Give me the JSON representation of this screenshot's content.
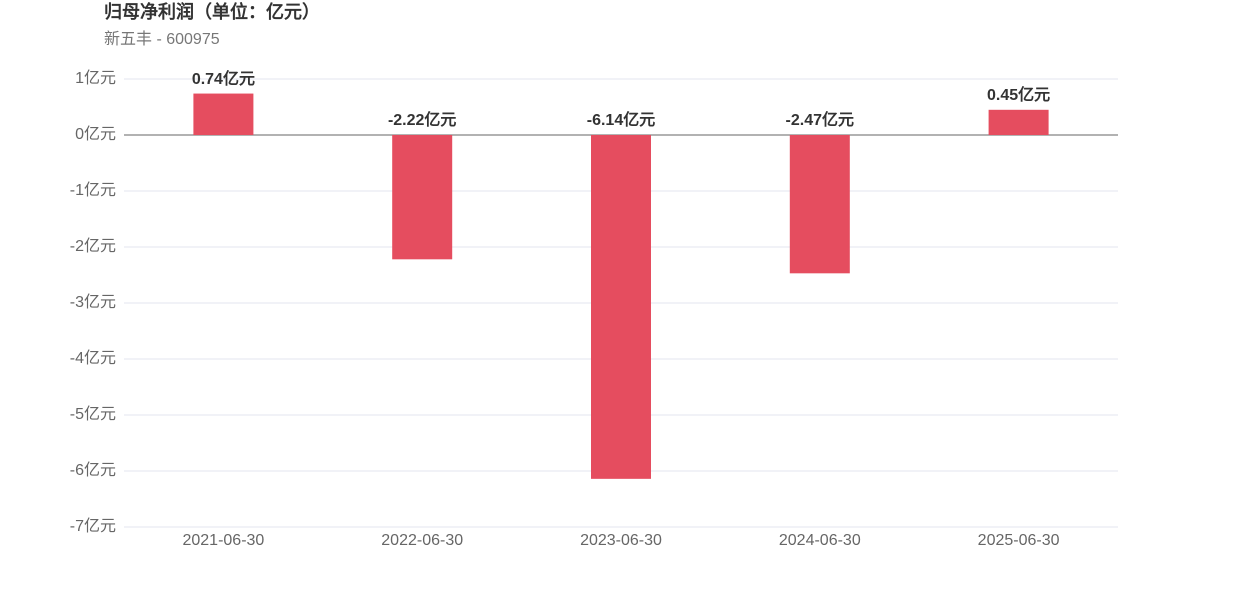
{
  "chart_data": {
    "type": "bar",
    "title": "归母净利润（单位：亿元）",
    "subtitle": "新五丰 - 600975",
    "categories": [
      "2021-06-30",
      "2022-06-30",
      "2023-06-30",
      "2024-06-30",
      "2025-06-30"
    ],
    "values": [
      0.74,
      -2.22,
      -6.14,
      -2.47,
      0.45
    ],
    "value_labels": [
      "0.74亿元",
      "-2.22亿元",
      "-6.14亿元",
      "-2.47亿元",
      "0.45亿元"
    ],
    "color": "#e54d5f",
    "ylim": [
      -7,
      1
    ],
    "yticks": [
      {
        "value": 1,
        "label": "1亿元"
      },
      {
        "value": 0,
        "label": "0亿元"
      },
      {
        "value": -1,
        "label": "-1亿元"
      },
      {
        "value": -2,
        "label": "-2亿元"
      },
      {
        "value": -3,
        "label": "-3亿元"
      },
      {
        "value": -4,
        "label": "-4亿元"
      },
      {
        "value": -5,
        "label": "-5亿元"
      },
      {
        "value": -6,
        "label": "-6亿元"
      },
      {
        "value": -7,
        "label": "-7亿元"
      }
    ],
    "grid": true
  }
}
